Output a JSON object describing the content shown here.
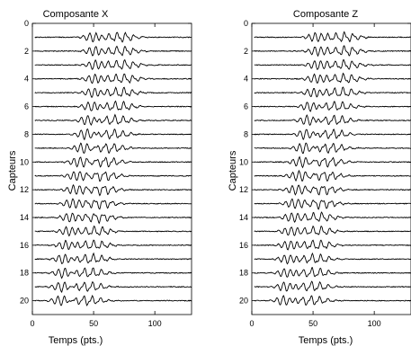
{
  "chart_data": [
    {
      "type": "line",
      "title": "Composante X",
      "xlabel": "Temps (pts.)",
      "ylabel": "Capteurs",
      "xlim": [
        0,
        130
      ],
      "ylim": [
        0,
        21
      ],
      "y_reversed": true,
      "x_ticks": [
        "0",
        "50",
        "100"
      ],
      "y_ticks": [
        "0",
        "2",
        "4",
        "6",
        "8",
        "10",
        "12",
        "14",
        "16",
        "18",
        "20"
      ],
      "grid": false,
      "legend": "none",
      "series_count": 20,
      "series_offsets": [
        1,
        2,
        3,
        4,
        5,
        6,
        7,
        8,
        9,
        10,
        11,
        12,
        13,
        14,
        15,
        16,
        17,
        18,
        19,
        20
      ],
      "wave_centers": [
        72,
        73,
        74,
        73,
        72,
        71,
        68,
        66,
        63,
        60,
        58,
        57,
        55,
        53,
        52,
        50,
        48,
        47,
        46,
        45
      ],
      "line_color": "#000000"
    },
    {
      "type": "line",
      "title": "Composante Z",
      "xlabel": "Temps (pts.)",
      "ylabel": "Capteurs",
      "xlim": [
        0,
        130
      ],
      "ylim": [
        0,
        21
      ],
      "y_reversed": true,
      "x_ticks": [
        "0",
        "50",
        "100"
      ],
      "y_ticks": [
        "0",
        "2",
        "4",
        "6",
        "8",
        "10",
        "12",
        "14",
        "16",
        "18",
        "20"
      ],
      "grid": false,
      "legend": "none",
      "series_count": 20,
      "series_offsets": [
        1,
        2,
        3,
        4,
        5,
        6,
        7,
        8,
        9,
        10,
        11,
        12,
        13,
        14,
        15,
        16,
        17,
        18,
        19,
        20
      ],
      "wave_centers": [
        75,
        76,
        76,
        75,
        73,
        70,
        68,
        66,
        64,
        62,
        60,
        58,
        57,
        55,
        54,
        53,
        52,
        51,
        50,
        49
      ],
      "line_color": "#000000"
    }
  ]
}
